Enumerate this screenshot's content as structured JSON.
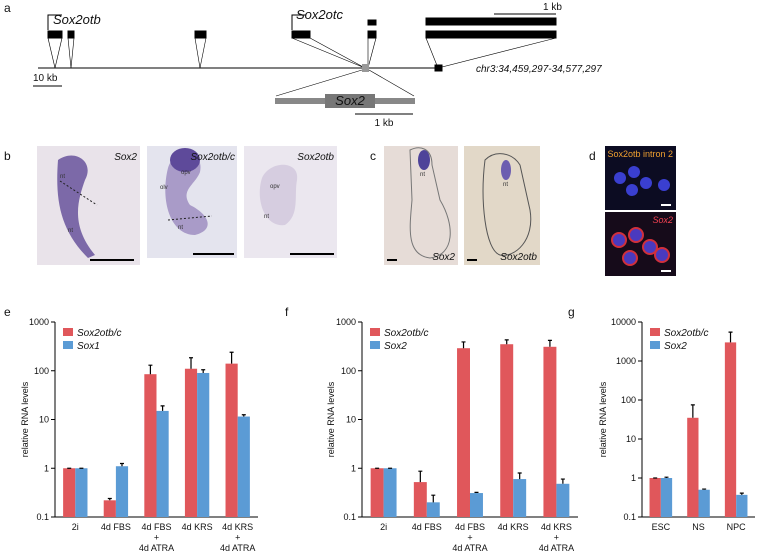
{
  "panel_a": {
    "label": "a",
    "gene_otb": "Sox2otb",
    "gene_otc": "Sox2otc",
    "scale_top": "1 kb",
    "scale_left": "10 kb",
    "locus": "chr3:34,459,297-34,577,297",
    "gene_sox2": "Sox2",
    "scale_bottom": "1 kb"
  },
  "panel_b": {
    "label": "b",
    "images": [
      {
        "title": "Sox2",
        "annotations": [
          "nt",
          "nt"
        ]
      },
      {
        "title": "Sox2otb/c",
        "annotations": [
          "opv",
          "olv",
          "nt"
        ]
      },
      {
        "title": "Sox2otb",
        "annotations": [
          "opv",
          "nt"
        ]
      }
    ]
  },
  "panel_c": {
    "label": "c",
    "images": [
      {
        "title": "Sox2",
        "annotation": "nt"
      },
      {
        "title": "Sox2otb",
        "annotation": "nt"
      }
    ]
  },
  "panel_d": {
    "label": "d",
    "images": [
      {
        "title": "Sox2otb intron 2"
      },
      {
        "title": "Sox2"
      }
    ]
  },
  "chart_data": [
    {
      "type": "bar",
      "panel_label": "e",
      "ylabel": "relative RNA levels",
      "log_scale": true,
      "categories": [
        [
          "2i"
        ],
        [
          "4d FBS"
        ],
        [
          "4d FBS",
          "+",
          "4d ATRA"
        ],
        [
          "4d KRS"
        ],
        [
          "4d KRS",
          "+",
          "4d ATRA"
        ]
      ],
      "series": [
        {
          "name": "Sox2otb/c",
          "color": "#e0575b",
          "values": [
            1,
            0.22,
            85,
            110,
            140
          ],
          "errors": [
            0,
            0.02,
            45,
            75,
            100
          ]
        },
        {
          "name": "Sox1",
          "color": "#5b9bd5",
          "values": [
            1,
            1.1,
            15,
            90,
            11.5
          ],
          "errors": [
            0,
            0.15,
            4,
            15,
            1
          ]
        }
      ],
      "ylim": [
        0.1,
        1000
      ],
      "yticks": [
        0.1,
        1,
        10,
        100,
        1000
      ]
    },
    {
      "type": "bar",
      "panel_label": "f",
      "ylabel": "relative RNA levels",
      "log_scale": true,
      "categories": [
        [
          "2i"
        ],
        [
          "4d FBS"
        ],
        [
          "4d FBS",
          "+",
          "4d ATRA"
        ],
        [
          "4d KRS"
        ],
        [
          "4d KRS",
          "+",
          "4d ATRA"
        ]
      ],
      "series": [
        {
          "name": "Sox2otb/c",
          "color": "#e0575b",
          "values": [
            1,
            0.52,
            290,
            350,
            310
          ],
          "errors": [
            0,
            0.35,
            100,
            80,
            110
          ]
        },
        {
          "name": "Sox2",
          "color": "#5b9bd5",
          "values": [
            1,
            0.2,
            0.31,
            0.6,
            0.48
          ],
          "errors": [
            0,
            0.08,
            0.01,
            0.2,
            0.12
          ]
        }
      ],
      "ylim": [
        0.1,
        1000
      ],
      "yticks": [
        0.1,
        1,
        10,
        100,
        1000
      ]
    },
    {
      "type": "bar",
      "panel_label": "g",
      "ylabel": "relative RNA levels",
      "log_scale": true,
      "categories": [
        [
          "ESC"
        ],
        [
          "NS"
        ],
        [
          "NPC"
        ]
      ],
      "series": [
        {
          "name": "Sox2otb/c",
          "color": "#e0575b",
          "values": [
            1,
            35,
            3000
          ],
          "errors": [
            0,
            40,
            2500
          ]
        },
        {
          "name": "Sox2",
          "color": "#5b9bd5",
          "values": [
            1,
            0.5,
            0.37
          ],
          "errors": [
            0.05,
            0.02,
            0.04
          ]
        }
      ],
      "ylim": [
        0.1,
        10000
      ],
      "yticks": [
        0.1,
        1,
        10,
        100,
        1000,
        10000
      ]
    }
  ]
}
